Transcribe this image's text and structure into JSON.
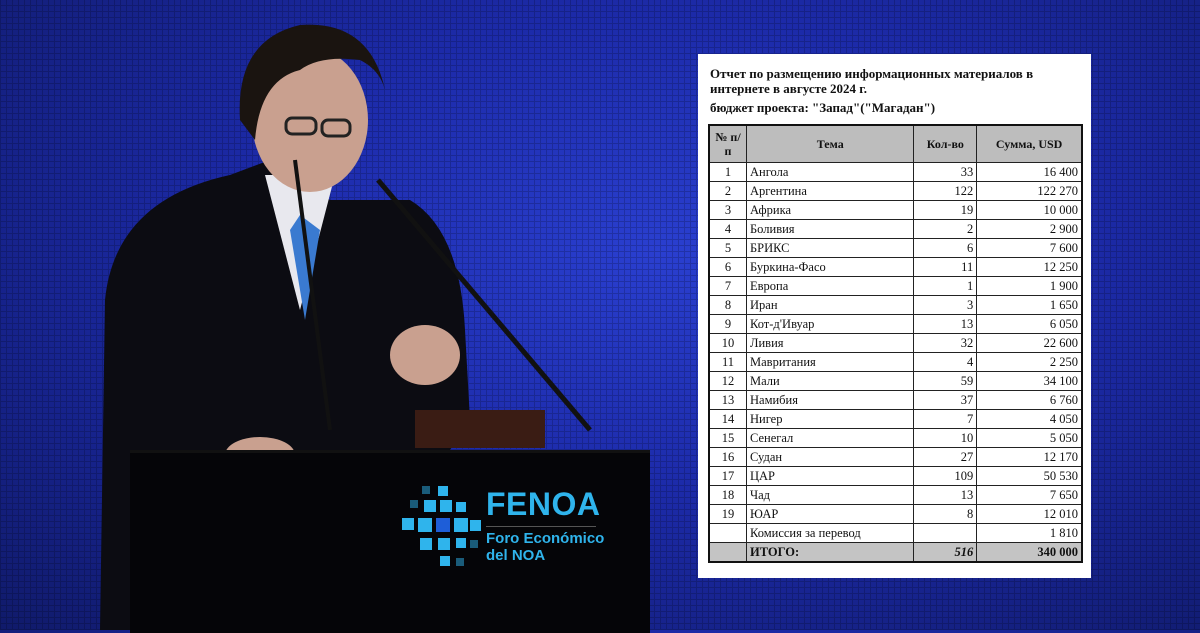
{
  "logo": {
    "title": "FENOA",
    "subtitle_line1": "Foro Económico",
    "subtitle_line2": "del NOA",
    "color": "#2fb4ec"
  },
  "document": {
    "title": "Отчет по размещению информационных материалов в интернете в августе 2024 г.",
    "budget": "бюджет проекта: \"Запад\"(\"Магадан\")",
    "headers": [
      "№ п/п",
      "Тема",
      "Кол-во",
      "Сумма, USD"
    ],
    "rows": [
      [
        "1",
        "Ангола",
        "33",
        "16 400"
      ],
      [
        "2",
        "Аргентина",
        "122",
        "122 270"
      ],
      [
        "3",
        "Африка",
        "19",
        "10 000"
      ],
      [
        "4",
        "Боливия",
        "2",
        "2 900"
      ],
      [
        "5",
        "БРИКС",
        "6",
        "7 600"
      ],
      [
        "6",
        "Буркина-Фасо",
        "11",
        "12 250"
      ],
      [
        "7",
        "Европа",
        "1",
        "1 900"
      ],
      [
        "8",
        "Иран",
        "3",
        "1 650"
      ],
      [
        "9",
        "Кот-д'Ивуар",
        "13",
        "6 050"
      ],
      [
        "10",
        "Ливия",
        "32",
        "22 600"
      ],
      [
        "11",
        "Мавритания",
        "4",
        "2 250"
      ],
      [
        "12",
        "Мали",
        "59",
        "34 100"
      ],
      [
        "13",
        "Намибия",
        "37",
        "6 760"
      ],
      [
        "14",
        "Нигер",
        "7",
        "4 050"
      ],
      [
        "15",
        "Сенегал",
        "10",
        "5 050"
      ],
      [
        "16",
        "Судан",
        "27",
        "12 170"
      ],
      [
        "17",
        "ЦАР",
        "109",
        "50 530"
      ],
      [
        "18",
        "Чад",
        "13",
        "7 650"
      ],
      [
        "19",
        "ЮАР",
        "8",
        "12 010"
      ],
      [
        "",
        "Комиссия за перевод",
        "",
        "1 810"
      ]
    ],
    "total": {
      "label": "ИТОГО:",
      "count": "516",
      "sum": "340 000"
    }
  }
}
